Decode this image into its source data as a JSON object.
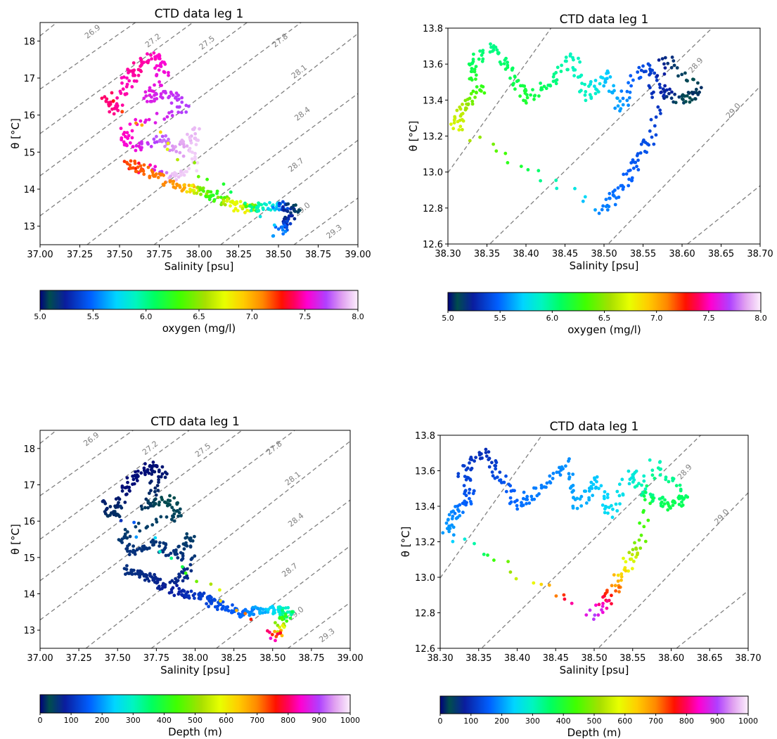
{
  "figure": {
    "panels_count": 4,
    "colormap": "gist_ncar"
  },
  "chart_data": [
    {
      "id": "p1",
      "type": "scatter",
      "title": "CTD data leg 1",
      "xlabel": "Salinity [psu]",
      "ylabel": "θ [°C]",
      "xlim": [
        37.0,
        39.0
      ],
      "ylim": [
        12.5,
        18.5
      ],
      "xticks": [
        "37.00",
        "37.25",
        "37.50",
        "37.75",
        "38.00",
        "38.25",
        "38.50",
        "38.75",
        "39.00"
      ],
      "yticks": [
        "13",
        "14",
        "15",
        "16",
        "17",
        "18"
      ],
      "grid": false,
      "isopycnals": [
        "26.9",
        "27.2",
        "27.5",
        "27.8",
        "28.1",
        "28.4",
        "28.7",
        "29.0",
        "29.3"
      ],
      "color_variable": "oxygen",
      "colorbar": {
        "label": "oxygen (mg/l)",
        "range": [
          5.0,
          8.0
        ],
        "ticks": [
          "5.0",
          "5.5",
          "6.0",
          "6.5",
          "7.0",
          "7.5",
          "8.0"
        ]
      },
      "points": [
        {
          "s": 37.42,
          "t": 16.5,
          "c": 7.4
        },
        {
          "s": 37.48,
          "t": 16.1,
          "c": 7.45
        },
        {
          "s": 37.55,
          "t": 16.9,
          "c": 7.5
        },
        {
          "s": 37.62,
          "t": 17.3,
          "c": 7.45
        },
        {
          "s": 37.72,
          "t": 17.6,
          "c": 7.5
        },
        {
          "s": 37.78,
          "t": 17.2,
          "c": 7.55
        },
        {
          "s": 37.68,
          "t": 16.4,
          "c": 7.6
        },
        {
          "s": 37.82,
          "t": 16.6,
          "c": 7.65
        },
        {
          "s": 37.92,
          "t": 16.2,
          "c": 7.7
        },
        {
          "s": 37.52,
          "t": 15.6,
          "c": 7.5
        },
        {
          "s": 37.6,
          "t": 15.1,
          "c": 7.55
        },
        {
          "s": 37.75,
          "t": 15.4,
          "c": 7.75
        },
        {
          "s": 37.88,
          "t": 15.0,
          "c": 7.85
        },
        {
          "s": 37.97,
          "t": 15.6,
          "c": 7.9
        },
        {
          "s": 37.95,
          "t": 14.6,
          "c": 7.95
        },
        {
          "s": 37.83,
          "t": 14.3,
          "c": 7.9
        },
        {
          "s": 37.55,
          "t": 14.7,
          "c": 7.2
        },
        {
          "s": 37.68,
          "t": 14.5,
          "c": 7.15
        },
        {
          "s": 37.8,
          "t": 14.2,
          "c": 7.1
        },
        {
          "s": 37.93,
          "t": 14.0,
          "c": 7.0
        },
        {
          "s": 38.02,
          "t": 13.95,
          "c": 6.5
        },
        {
          "s": 38.1,
          "t": 13.8,
          "c": 6.2
        },
        {
          "s": 38.2,
          "t": 13.6,
          "c": 6.7
        },
        {
          "s": 38.28,
          "t": 13.45,
          "c": 6.8
        },
        {
          "s": 38.36,
          "t": 13.5,
          "c": 6.0
        },
        {
          "s": 38.45,
          "t": 13.55,
          "c": 5.8
        },
        {
          "s": 38.53,
          "t": 13.55,
          "c": 5.4
        },
        {
          "s": 38.6,
          "t": 13.5,
          "c": 5.1
        },
        {
          "s": 38.55,
          "t": 13.1,
          "c": 5.3
        },
        {
          "s": 38.5,
          "t": 12.8,
          "c": 5.6
        }
      ]
    },
    {
      "id": "p2",
      "type": "scatter",
      "title": "CTD data leg 1",
      "xlabel": "Salinity [psu]",
      "ylabel": "θ [°C]",
      "xlim": [
        38.3,
        38.7
      ],
      "ylim": [
        12.6,
        13.8
      ],
      "xticks": [
        "38.30",
        "38.35",
        "38.40",
        "38.45",
        "38.50",
        "38.55",
        "38.60",
        "38.65",
        "38.70"
      ],
      "yticks": [
        "12.6",
        "12.8",
        "13.0",
        "13.2",
        "13.4",
        "13.6",
        "13.8"
      ],
      "grid": false,
      "isopycnals": [
        "28.9",
        "29.0"
      ],
      "color_variable": "oxygen",
      "colorbar": {
        "label": "oxygen (mg/l)",
        "range": [
          5.0,
          8.0
        ],
        "ticks": [
          "5.0",
          "5.5",
          "6.0",
          "6.5",
          "7.0",
          "7.5",
          "8.0"
        ]
      },
      "points": [
        {
          "s": 38.31,
          "t": 13.25,
          "c": 6.7
        },
        {
          "s": 38.32,
          "t": 13.35,
          "c": 6.6
        },
        {
          "s": 38.34,
          "t": 13.45,
          "c": 6.3
        },
        {
          "s": 38.33,
          "t": 13.6,
          "c": 6.1
        },
        {
          "s": 38.36,
          "t": 13.7,
          "c": 6.0
        },
        {
          "s": 38.38,
          "t": 13.55,
          "c": 6.1
        },
        {
          "s": 38.4,
          "t": 13.4,
          "c": 6.2
        },
        {
          "s": 38.43,
          "t": 13.5,
          "c": 6.05
        },
        {
          "s": 38.46,
          "t": 13.65,
          "c": 5.9
        },
        {
          "s": 38.48,
          "t": 13.4,
          "c": 5.9
        },
        {
          "s": 38.5,
          "t": 13.55,
          "c": 5.7
        },
        {
          "s": 38.52,
          "t": 13.35,
          "c": 5.6
        },
        {
          "s": 38.55,
          "t": 13.6,
          "c": 5.4
        },
        {
          "s": 38.57,
          "t": 13.45,
          "c": 5.3
        },
        {
          "s": 38.6,
          "t": 13.4,
          "c": 5.1
        },
        {
          "s": 38.62,
          "t": 13.45,
          "c": 5.05
        },
        {
          "s": 38.58,
          "t": 13.65,
          "c": 5.2
        },
        {
          "s": 38.56,
          "t": 13.2,
          "c": 5.4
        },
        {
          "s": 38.54,
          "t": 13.05,
          "c": 5.45
        },
        {
          "s": 38.52,
          "t": 12.9,
          "c": 5.5
        },
        {
          "s": 38.5,
          "t": 12.78,
          "c": 5.55
        }
      ]
    },
    {
      "id": "p3",
      "type": "scatter",
      "title": "CTD data leg 1",
      "xlabel": "Salinity [psu]",
      "ylabel": "θ [°C]",
      "xlim": [
        37.0,
        39.0
      ],
      "ylim": [
        12.5,
        18.5
      ],
      "xticks": [
        "37.00",
        "37.25",
        "37.50",
        "37.75",
        "38.00",
        "38.25",
        "38.50",
        "38.75",
        "39.00"
      ],
      "yticks": [
        "13",
        "14",
        "15",
        "16",
        "17",
        "18"
      ],
      "grid": false,
      "isopycnals": [
        "26.9",
        "27.2",
        "27.5",
        "27.8",
        "28.1",
        "28.4",
        "28.7",
        "29.0",
        "29.3"
      ],
      "color_variable": "depth",
      "colorbar": {
        "label": "Depth (m)",
        "range": [
          0,
          1000
        ],
        "ticks": [
          "0",
          "100",
          "200",
          "300",
          "400",
          "500",
          "600",
          "700",
          "800",
          "900",
          "1000"
        ]
      },
      "points": [
        {
          "s": 37.42,
          "t": 16.5,
          "c": 10
        },
        {
          "s": 37.48,
          "t": 16.1,
          "c": 20
        },
        {
          "s": 37.55,
          "t": 16.9,
          "c": 5
        },
        {
          "s": 37.62,
          "t": 17.3,
          "c": 5
        },
        {
          "s": 37.72,
          "t": 17.6,
          "c": 5
        },
        {
          "s": 37.78,
          "t": 17.2,
          "c": 10
        },
        {
          "s": 37.68,
          "t": 16.4,
          "c": 20
        },
        {
          "s": 37.82,
          "t": 16.6,
          "c": 30
        },
        {
          "s": 37.92,
          "t": 16.2,
          "c": 40
        },
        {
          "s": 37.52,
          "t": 15.6,
          "c": 50
        },
        {
          "s": 37.6,
          "t": 15.1,
          "c": 60
        },
        {
          "s": 37.75,
          "t": 15.4,
          "c": 55
        },
        {
          "s": 37.88,
          "t": 15.0,
          "c": 60
        },
        {
          "s": 37.97,
          "t": 15.6,
          "c": 45
        },
        {
          "s": 37.95,
          "t": 14.6,
          "c": 65
        },
        {
          "s": 37.83,
          "t": 14.3,
          "c": 70
        },
        {
          "s": 37.55,
          "t": 14.7,
          "c": 60
        },
        {
          "s": 37.68,
          "t": 14.5,
          "c": 65
        },
        {
          "s": 37.8,
          "t": 14.2,
          "c": 75
        },
        {
          "s": 37.93,
          "t": 14.0,
          "c": 90
        },
        {
          "s": 38.02,
          "t": 13.95,
          "c": 110
        },
        {
          "s": 38.1,
          "t": 13.8,
          "c": 130
        },
        {
          "s": 38.2,
          "t": 13.6,
          "c": 140
        },
        {
          "s": 38.28,
          "t": 13.45,
          "c": 160
        },
        {
          "s": 38.36,
          "t": 13.5,
          "c": 180
        },
        {
          "s": 38.45,
          "t": 13.55,
          "c": 220
        },
        {
          "s": 38.53,
          "t": 13.55,
          "c": 260
        },
        {
          "s": 38.6,
          "t": 13.5,
          "c": 330
        },
        {
          "s": 38.55,
          "t": 13.1,
          "c": 500
        },
        {
          "s": 38.5,
          "t": 12.8,
          "c": 850
        }
      ]
    },
    {
      "id": "p4",
      "type": "scatter",
      "title": "CTD data leg 1",
      "xlabel": "Salinity [psu]",
      "ylabel": "θ [°C]",
      "xlim": [
        38.3,
        38.7
      ],
      "ylim": [
        12.6,
        13.8
      ],
      "xticks": [
        "38.30",
        "38.35",
        "38.40",
        "38.45",
        "38.50",
        "38.55",
        "38.60",
        "38.65",
        "38.70"
      ],
      "yticks": [
        "12.6",
        "12.8",
        "13.0",
        "13.2",
        "13.4",
        "13.6",
        "13.8"
      ],
      "grid": false,
      "isopycnals": [
        "28.9",
        "29.0"
      ],
      "color_variable": "depth",
      "colorbar": {
        "label": "Depth (m)",
        "range": [
          0,
          1000
        ],
        "ticks": [
          "0",
          "100",
          "200",
          "300",
          "400",
          "500",
          "600",
          "700",
          "800",
          "900",
          "1000"
        ]
      },
      "points": [
        {
          "s": 38.31,
          "t": 13.25,
          "c": 200
        },
        {
          "s": 38.32,
          "t": 13.35,
          "c": 190
        },
        {
          "s": 38.34,
          "t": 13.45,
          "c": 150
        },
        {
          "s": 38.33,
          "t": 13.6,
          "c": 120
        },
        {
          "s": 38.36,
          "t": 13.7,
          "c": 100
        },
        {
          "s": 38.38,
          "t": 13.55,
          "c": 140
        },
        {
          "s": 38.4,
          "t": 13.4,
          "c": 170
        },
        {
          "s": 38.43,
          "t": 13.5,
          "c": 180
        },
        {
          "s": 38.46,
          "t": 13.65,
          "c": 190
        },
        {
          "s": 38.48,
          "t": 13.4,
          "c": 210
        },
        {
          "s": 38.5,
          "t": 13.55,
          "c": 230
        },
        {
          "s": 38.52,
          "t": 13.35,
          "c": 250
        },
        {
          "s": 38.55,
          "t": 13.6,
          "c": 270
        },
        {
          "s": 38.57,
          "t": 13.45,
          "c": 330
        },
        {
          "s": 38.6,
          "t": 13.4,
          "c": 380
        },
        {
          "s": 38.62,
          "t": 13.45,
          "c": 360
        },
        {
          "s": 38.58,
          "t": 13.65,
          "c": 300
        },
        {
          "s": 38.56,
          "t": 13.2,
          "c": 480
        },
        {
          "s": 38.54,
          "t": 13.05,
          "c": 600
        },
        {
          "s": 38.52,
          "t": 12.9,
          "c": 750
        },
        {
          "s": 38.5,
          "t": 12.78,
          "c": 900
        }
      ]
    }
  ]
}
